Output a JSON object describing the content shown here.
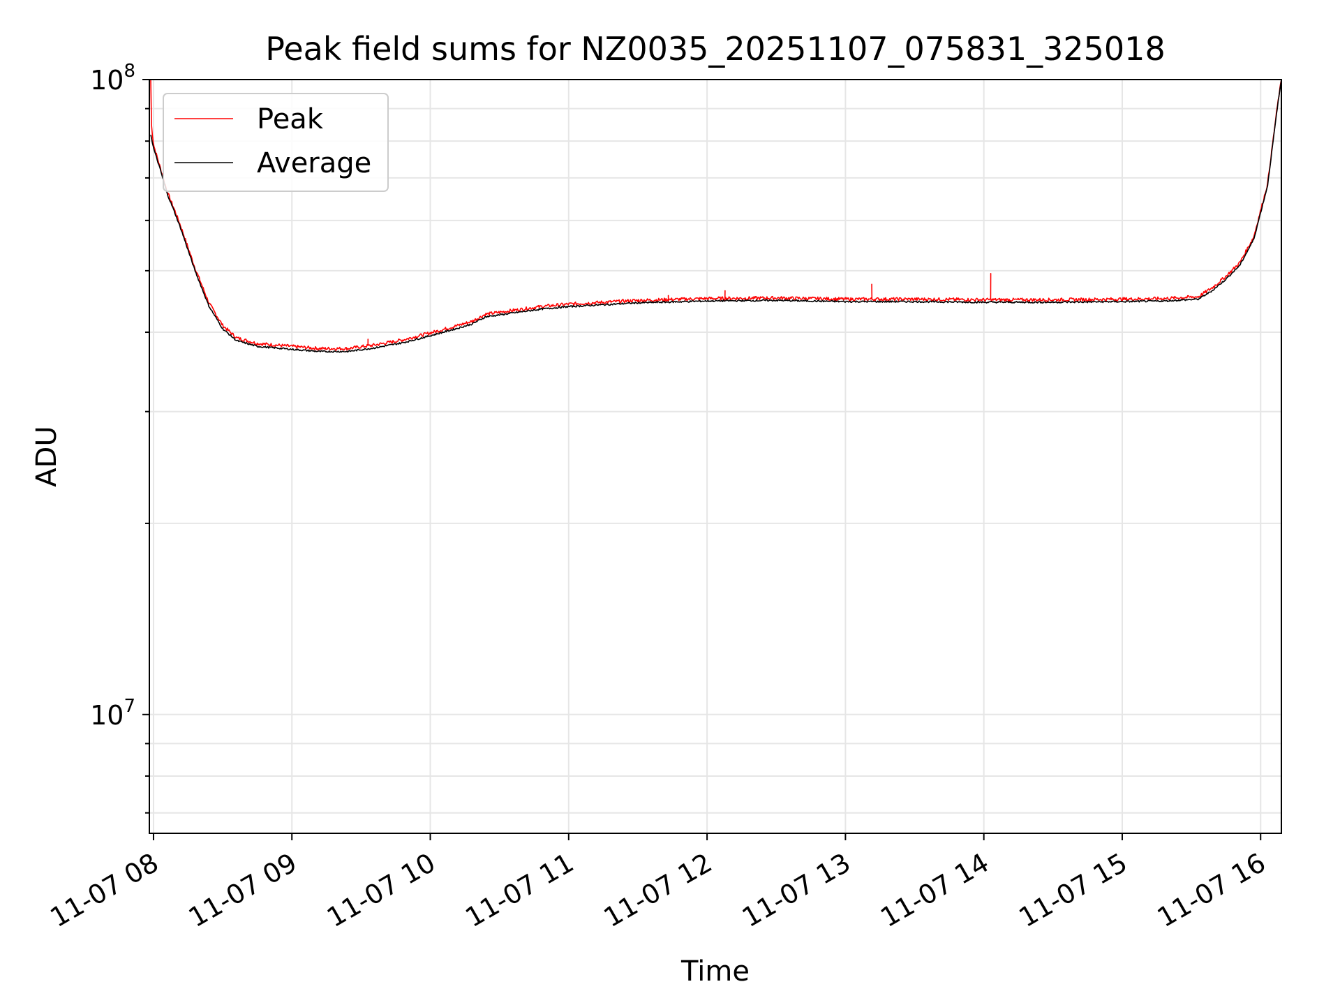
{
  "colors": {
    "peak": "#ff0000",
    "average": "#000000",
    "grid": "#e6e6e6",
    "axis": "#000000",
    "background": "#ffffff"
  },
  "chart_data": {
    "type": "line",
    "title": "Peak field sums for NZ0035_20251107_075831_325018",
    "xlabel": "Time",
    "ylabel": "ADU",
    "yscale": "log",
    "ylim": [
      6500000,
      100000000
    ],
    "xlim_hours": [
      7.97,
      16.15
    ],
    "grid": true,
    "legend_position": "top-left",
    "x_ticks": [
      {
        "hour": 8,
        "label": "11-07 08"
      },
      {
        "hour": 9,
        "label": "11-07 09"
      },
      {
        "hour": 10,
        "label": "11-07 10"
      },
      {
        "hour": 11,
        "label": "11-07 11"
      },
      {
        "hour": 12,
        "label": "11-07 12"
      },
      {
        "hour": 13,
        "label": "11-07 13"
      },
      {
        "hour": 14,
        "label": "11-07 14"
      },
      {
        "hour": 15,
        "label": "11-07 15"
      },
      {
        "hour": 16,
        "label": "11-07 16"
      }
    ],
    "y_ticks": [
      {
        "value": 10000000,
        "base": "10",
        "exp": "7"
      },
      {
        "value": 100000000,
        "base": "10",
        "exp": "8"
      }
    ],
    "series": [
      {
        "name": "Average",
        "color": "#000000",
        "points": [
          [
            7.98,
            82000000
          ],
          [
            8.0,
            78000000
          ],
          [
            8.05,
            72000000
          ],
          [
            8.1,
            66000000
          ],
          [
            8.15,
            62000000
          ],
          [
            8.2,
            58000000
          ],
          [
            8.3,
            50000000
          ],
          [
            8.4,
            44000000
          ],
          [
            8.5,
            40500000
          ],
          [
            8.6,
            38800000
          ],
          [
            8.75,
            38000000
          ],
          [
            9.0,
            37600000
          ],
          [
            9.2,
            37300000
          ],
          [
            9.4,
            37300000
          ],
          [
            9.6,
            37800000
          ],
          [
            9.8,
            38500000
          ],
          [
            10.0,
            39500000
          ],
          [
            10.2,
            40600000
          ],
          [
            10.3,
            41200000
          ],
          [
            10.4,
            42300000
          ],
          [
            10.6,
            42900000
          ],
          [
            10.8,
            43500000
          ],
          [
            11.0,
            43900000
          ],
          [
            11.5,
            44500000
          ],
          [
            12.0,
            44800000
          ],
          [
            12.5,
            44900000
          ],
          [
            13.0,
            44700000
          ],
          [
            13.5,
            44700000
          ],
          [
            14.0,
            44600000
          ],
          [
            14.5,
            44600000
          ],
          [
            15.0,
            44700000
          ],
          [
            15.3,
            44800000
          ],
          [
            15.55,
            45100000
          ],
          [
            15.65,
            46500000
          ],
          [
            15.75,
            48500000
          ],
          [
            15.85,
            51000000
          ],
          [
            15.95,
            56000000
          ],
          [
            16.05,
            68000000
          ],
          [
            16.12,
            90000000
          ],
          [
            16.15,
            100000000
          ]
        ]
      },
      {
        "name": "Peak",
        "color": "#ff0000",
        "points": [
          [
            7.98,
            100000000
          ],
          [
            7.985,
            85000000
          ],
          [
            8.0,
            79000000
          ],
          [
            8.05,
            72500000
          ],
          [
            8.1,
            66500000
          ],
          [
            8.15,
            62500000
          ],
          [
            8.2,
            58500000
          ],
          [
            8.3,
            50500000
          ],
          [
            8.4,
            44500000
          ],
          [
            8.5,
            41000000
          ],
          [
            8.6,
            39200000
          ],
          [
            8.75,
            38400000
          ],
          [
            9.0,
            38000000
          ],
          [
            9.2,
            37700000
          ],
          [
            9.4,
            37700000
          ],
          [
            9.6,
            38200000
          ],
          [
            9.8,
            38900000
          ],
          [
            10.0,
            39900000
          ],
          [
            10.2,
            41000000
          ],
          [
            10.3,
            41600000
          ],
          [
            10.4,
            42700000
          ],
          [
            10.6,
            43300000
          ],
          [
            10.8,
            43900000
          ],
          [
            11.0,
            44300000
          ],
          [
            11.5,
            44900000
          ],
          [
            12.0,
            45200000
          ],
          [
            12.5,
            45300000
          ],
          [
            13.0,
            45100000
          ],
          [
            13.5,
            45100000
          ],
          [
            14.0,
            45000000
          ],
          [
            14.5,
            45000000
          ],
          [
            15.0,
            45100000
          ],
          [
            15.3,
            45200000
          ],
          [
            15.55,
            45500000
          ],
          [
            15.65,
            47000000
          ],
          [
            15.75,
            49000000
          ],
          [
            15.85,
            51500000
          ],
          [
            15.95,
            56500000
          ],
          [
            16.05,
            68500000
          ],
          [
            16.12,
            90500000
          ],
          [
            16.15,
            100000000
          ]
        ],
        "spikes": [
          {
            "hour": 12.13,
            "value": 46500000
          },
          {
            "hour": 13.19,
            "value": 47600000
          },
          {
            "hour": 14.05,
            "value": 49500000
          },
          {
            "hour": 9.55,
            "value": 39000000
          },
          {
            "hour": 11.72,
            "value": 45700000
          }
        ]
      }
    ]
  }
}
